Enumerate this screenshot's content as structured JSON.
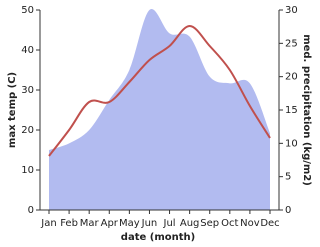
{
  "chart_data": {
    "type": "line",
    "categories": [
      "Jan",
      "Feb",
      "Mar",
      "Apr",
      "May",
      "Jun",
      "Jul",
      "Aug",
      "Sep",
      "Oct",
      "Nov",
      "Dec"
    ],
    "x_label": "date (month)",
    "y_label": "max temp (C)",
    "y2_label": "med. precipitation (kg/m2)",
    "ylim": [
      0,
      50
    ],
    "yticks": [
      0,
      10,
      20,
      30,
      40,
      50
    ],
    "y2lim": [
      0,
      30
    ],
    "y2ticks": [
      0,
      5,
      10,
      15,
      20,
      25,
      30
    ],
    "series": [
      {
        "name": "med. precipitation",
        "type": "area",
        "axis": "y2",
        "color": "#b2bbf0",
        "values": [
          9,
          10,
          12,
          16.5,
          21,
          30,
          26.5,
          26,
          20,
          19,
          19,
          11.5
        ]
      },
      {
        "name": "max temp",
        "type": "line",
        "axis": "y",
        "color": "#c0504d",
        "values": [
          13.5,
          20,
          27,
          27,
          32,
          37.5,
          41,
          46,
          41,
          35,
          26,
          18
        ]
      }
    ]
  }
}
